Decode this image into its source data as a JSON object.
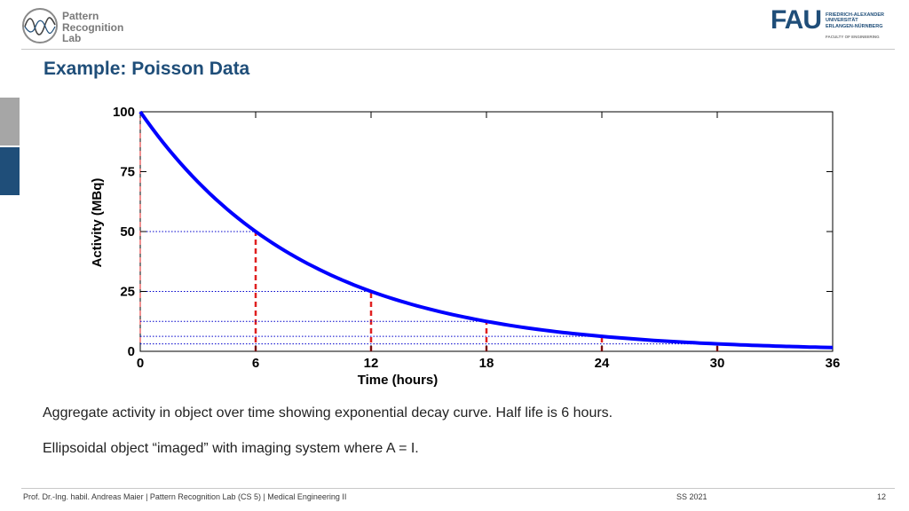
{
  "header": {
    "logo_left": {
      "line1": "Pattern",
      "line2": "Recognition",
      "line3": "Lab",
      "icon": "pattern-recognition-lab-logo-icon"
    },
    "logo_right": {
      "mark": "FAU",
      "line1": "FRIEDRICH-ALEXANDER",
      "line2": "UNIVERSITÄT",
      "line3": "ERLANGEN-NÜRNBERG",
      "line4": "FACULTY OF ENGINEERING"
    },
    "title": "Example: Poisson Data"
  },
  "chart_data": {
    "type": "line",
    "xlabel": "Time (hours)",
    "ylabel": "Activity (MBq)",
    "xlim": [
      0,
      36
    ],
    "ylim": [
      0,
      100
    ],
    "xticks": [
      0,
      6,
      12,
      18,
      24,
      30,
      36
    ],
    "yticks": [
      0,
      25,
      50,
      75,
      100
    ],
    "series": [
      {
        "x": [
          0,
          3,
          6,
          9,
          12,
          15,
          18,
          21,
          24,
          27,
          30,
          33,
          36
        ],
        "y": [
          100,
          70.7,
          50,
          35.4,
          25,
          17.7,
          12.5,
          8.8,
          6.25,
          4.4,
          3.125,
          2.2,
          1.5625
        ],
        "color": "#0000ff"
      }
    ],
    "half_life_markers": [
      {
        "x": 0,
        "y": 100
      },
      {
        "x": 6,
        "y": 50
      },
      {
        "x": 12,
        "y": 25
      },
      {
        "x": 18,
        "y": 12.5
      },
      {
        "x": 24,
        "y": 6.25
      },
      {
        "x": 30,
        "y": 3.125
      }
    ],
    "marker_color": "#e02020",
    "guide_color": "#0000cc",
    "grid": false
  },
  "body": {
    "bullet1": "Aggregate activity in object over time showing exponential decay curve. Half life is 6 hours.",
    "bullet2": "Ellipsoidal object “imaged” with imaging system where A = I."
  },
  "footer": {
    "left": "Prof. Dr.-Ing. habil. Andreas Maier   |   Pattern Recognition Lab (CS 5)   |   Medical Engineering II",
    "semester": "SS 2021",
    "page": "12"
  }
}
